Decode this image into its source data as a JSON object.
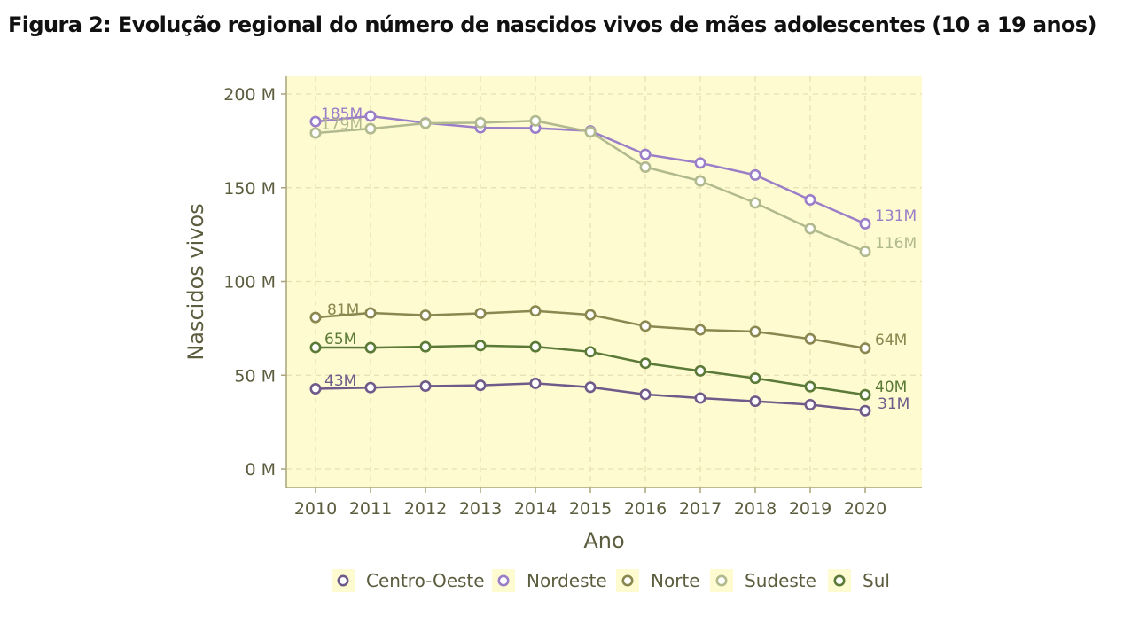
{
  "figure": {
    "title": "Figura 2: Evolução regional do número de nascidos vivos de mães adolescentes (10 a 19 anos)"
  },
  "chart_data": {
    "type": "line",
    "title": "Figura 2: Evolução regional do número de nascidos vivos de mães adolescentes (10 a 19 anos)",
    "xlabel": "Ano",
    "ylabel": "Nascidos vivos",
    "x": [
      2010,
      2011,
      2012,
      2013,
      2014,
      2015,
      2016,
      2017,
      2018,
      2019,
      2020
    ],
    "ylim": [
      -10000,
      210000
    ],
    "yticks": [
      0,
      50000,
      100000,
      150000,
      200000
    ],
    "ytick_labels": [
      "0 M",
      "50 M",
      "100 M",
      "150 M",
      "200 M"
    ],
    "grid": true,
    "legend_position": "bottom",
    "background": "#fffbd0",
    "series": [
      {
        "name": "Centro-Oeste",
        "color": "#6f5a8a",
        "values": [
          42800,
          43400,
          44200,
          44600,
          45700,
          43600,
          39800,
          37800,
          36100,
          34300,
          31100
        ],
        "start_label": "43M",
        "end_label": "31M"
      },
      {
        "name": "Nordeste",
        "color": "#9b7ec8",
        "values": [
          185300,
          188200,
          184600,
          182000,
          181800,
          180300,
          167800,
          163200,
          156800,
          143500,
          130800
        ],
        "start_label": "185M",
        "end_label": "131M"
      },
      {
        "name": "Norte",
        "color": "#8a8750",
        "values": [
          80800,
          83200,
          82000,
          83000,
          84300,
          82200,
          76200,
          74200,
          73300,
          69400,
          64400
        ],
        "start_label": "81M",
        "end_label": "64M"
      },
      {
        "name": "Sudeste",
        "color": "#b1b98e",
        "values": [
          179200,
          181500,
          184400,
          184700,
          185700,
          179800,
          161000,
          153600,
          141900,
          128200,
          116000
        ],
        "start_label": "179M",
        "end_label": "116M"
      },
      {
        "name": "Sul",
        "color": "#5b7a38",
        "values": [
          64800,
          64700,
          65200,
          65800,
          65200,
          62500,
          56400,
          52300,
          48400,
          43900,
          39600
        ],
        "start_label": "65M",
        "end_label": "40M"
      }
    ]
  }
}
